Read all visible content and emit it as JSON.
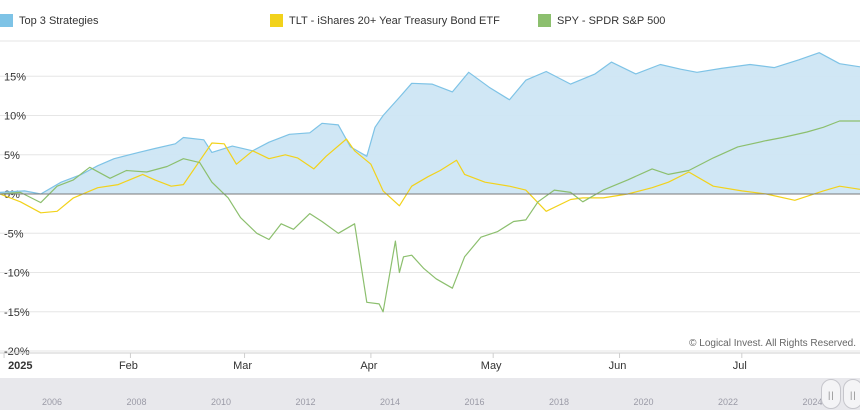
{
  "legend": [
    {
      "label": "Top 3 Strategies",
      "color": "#7ec3e6"
    },
    {
      "label": "TLT - iShares 20+ Year Treasury Bond ETF",
      "color": "#f2d21b"
    },
    {
      "label": "SPY - SPDR S&P 500",
      "color": "#8cbf6e"
    }
  ],
  "credits": "© Logical Invest. All Rights Reserved.",
  "navigator": {
    "years": [
      "2006",
      "2008",
      "2010",
      "2012",
      "2014",
      "2016",
      "2018",
      "2020",
      "2022",
      "2024"
    ],
    "handle_glyph": "||"
  },
  "chart_data": {
    "type": "area",
    "x_axis": {
      "type": "datetime",
      "tick_labels": [
        "2025",
        "Feb",
        "Mar",
        "Apr",
        "May",
        "Jun",
        "Jul"
      ],
      "tick_dates": [
        "2025-01-01",
        "2025-02-01",
        "2025-03-01",
        "2025-04-01",
        "2025-05-01",
        "2025-06-01",
        "2025-07-01"
      ],
      "range": [
        "2024-12-31",
        "2025-07-30"
      ]
    },
    "y_axis": {
      "tick_labels": [
        "15%",
        "10%",
        "5%",
        "0%",
        "-5%",
        "-10%",
        "-15%",
        "-20%"
      ],
      "tick_values": [
        15,
        10,
        5,
        0,
        -5,
        -10,
        -15,
        -20
      ],
      "ylim": [
        -20,
        20
      ],
      "grid": true
    },
    "legend_position": "top",
    "series": [
      {
        "name": "Top 3 Strategies",
        "color": "#7ec3e6",
        "fill": "#cde6f4",
        "render": "area",
        "points": [
          [
            "2024-12-31",
            0.2
          ],
          [
            "2025-01-06",
            0.4
          ],
          [
            "2025-01-10",
            0.0
          ],
          [
            "2025-01-15",
            1.5
          ],
          [
            "2025-01-20",
            2.5
          ],
          [
            "2025-01-24",
            3.6
          ],
          [
            "2025-01-28",
            4.5
          ],
          [
            "2025-02-03",
            5.3
          ],
          [
            "2025-02-07",
            5.8
          ],
          [
            "2025-02-12",
            6.4
          ],
          [
            "2025-02-14",
            7.2
          ],
          [
            "2025-02-19",
            6.9
          ],
          [
            "2025-02-21",
            5.3
          ],
          [
            "2025-02-26",
            6.1
          ],
          [
            "2025-03-03",
            5.5
          ],
          [
            "2025-03-07",
            6.6
          ],
          [
            "2025-03-12",
            7.6
          ],
          [
            "2025-03-17",
            7.8
          ],
          [
            "2025-03-20",
            9.0
          ],
          [
            "2025-03-24",
            8.8
          ],
          [
            "2025-03-27",
            6.0
          ],
          [
            "2025-03-31",
            4.8
          ],
          [
            "2025-04-02",
            8.5
          ],
          [
            "2025-04-04",
            10.0
          ],
          [
            "2025-04-08",
            12.3
          ],
          [
            "2025-04-11",
            14.1
          ],
          [
            "2025-04-16",
            14.0
          ],
          [
            "2025-04-21",
            13.0
          ],
          [
            "2025-04-25",
            15.5
          ],
          [
            "2025-04-30",
            13.6
          ],
          [
            "2025-05-05",
            12.0
          ],
          [
            "2025-05-09",
            14.5
          ],
          [
            "2025-05-14",
            15.6
          ],
          [
            "2025-05-20",
            14.0
          ],
          [
            "2025-05-26",
            15.3
          ],
          [
            "2025-05-30",
            16.8
          ],
          [
            "2025-06-05",
            15.3
          ],
          [
            "2025-06-11",
            16.5
          ],
          [
            "2025-06-16",
            15.9
          ],
          [
            "2025-06-20",
            15.5
          ],
          [
            "2025-06-26",
            16.0
          ],
          [
            "2025-07-03",
            16.5
          ],
          [
            "2025-07-09",
            16.1
          ],
          [
            "2025-07-15",
            17.1
          ],
          [
            "2025-07-20",
            18.0
          ],
          [
            "2025-07-25",
            16.6
          ],
          [
            "2025-07-30",
            16.2
          ]
        ]
      },
      {
        "name": "TLT - iShares 20+ Year Treasury Bond ETF",
        "color": "#f2d21b",
        "render": "line",
        "points": [
          [
            "2024-12-31",
            0.0
          ],
          [
            "2025-01-05",
            -1.0
          ],
          [
            "2025-01-10",
            -2.4
          ],
          [
            "2025-01-14",
            -2.2
          ],
          [
            "2025-01-18",
            -0.5
          ],
          [
            "2025-01-24",
            0.8
          ],
          [
            "2025-01-29",
            1.2
          ],
          [
            "2025-02-04",
            2.5
          ],
          [
            "2025-02-07",
            1.8
          ],
          [
            "2025-02-11",
            1.0
          ],
          [
            "2025-02-14",
            1.2
          ],
          [
            "2025-02-19",
            5.0
          ],
          [
            "2025-02-21",
            6.5
          ],
          [
            "2025-02-24",
            6.4
          ],
          [
            "2025-02-27",
            3.8
          ],
          [
            "2025-03-03",
            5.5
          ],
          [
            "2025-03-07",
            4.5
          ],
          [
            "2025-03-11",
            5.0
          ],
          [
            "2025-03-14",
            4.6
          ],
          [
            "2025-03-18",
            3.2
          ],
          [
            "2025-03-21",
            4.8
          ],
          [
            "2025-03-26",
            7.0
          ],
          [
            "2025-03-28",
            5.5
          ],
          [
            "2025-04-01",
            3.8
          ],
          [
            "2025-04-04",
            0.4
          ],
          [
            "2025-04-08",
            -1.5
          ],
          [
            "2025-04-11",
            1.0
          ],
          [
            "2025-04-15",
            2.2
          ],
          [
            "2025-04-18",
            3.0
          ],
          [
            "2025-04-22",
            4.3
          ],
          [
            "2025-04-24",
            2.5
          ],
          [
            "2025-04-29",
            1.5
          ],
          [
            "2025-05-05",
            1.0
          ],
          [
            "2025-05-09",
            0.5
          ],
          [
            "2025-05-14",
            -2.2
          ],
          [
            "2025-05-20",
            -0.7
          ],
          [
            "2025-05-23",
            -0.5
          ],
          [
            "2025-05-28",
            -0.5
          ],
          [
            "2025-06-03",
            0.0
          ],
          [
            "2025-06-09",
            0.8
          ],
          [
            "2025-06-13",
            1.5
          ],
          [
            "2025-06-18",
            2.8
          ],
          [
            "2025-06-24",
            1.0
          ],
          [
            "2025-07-01",
            0.4
          ],
          [
            "2025-07-07",
            0.0
          ],
          [
            "2025-07-14",
            -0.8
          ],
          [
            "2025-07-21",
            0.4
          ],
          [
            "2025-07-25",
            1.0
          ],
          [
            "2025-07-30",
            0.6
          ]
        ]
      },
      {
        "name": "SPY - SPDR S&P 500",
        "color": "#8cbf6e",
        "render": "line",
        "points": [
          [
            "2024-12-31",
            0.0
          ],
          [
            "2025-01-05",
            0.2
          ],
          [
            "2025-01-10",
            -1.1
          ],
          [
            "2025-01-14",
            1.0
          ],
          [
            "2025-01-18",
            1.8
          ],
          [
            "2025-01-22",
            3.4
          ],
          [
            "2025-01-27",
            2.0
          ],
          [
            "2025-01-31",
            3.0
          ],
          [
            "2025-02-05",
            2.8
          ],
          [
            "2025-02-10",
            3.5
          ],
          [
            "2025-02-14",
            4.5
          ],
          [
            "2025-02-18",
            4.0
          ],
          [
            "2025-02-21",
            1.5
          ],
          [
            "2025-02-25",
            -0.5
          ],
          [
            "2025-02-28",
            -3.0
          ],
          [
            "2025-03-04",
            -5.0
          ],
          [
            "2025-03-07",
            -5.8
          ],
          [
            "2025-03-10",
            -3.8
          ],
          [
            "2025-03-13",
            -4.5
          ],
          [
            "2025-03-17",
            -2.5
          ],
          [
            "2025-03-20",
            -3.5
          ],
          [
            "2025-03-24",
            -5.0
          ],
          [
            "2025-03-28",
            -3.8
          ],
          [
            "2025-03-31",
            -13.8
          ],
          [
            "2025-04-03",
            -14.0
          ],
          [
            "2025-04-04",
            -15.0
          ],
          [
            "2025-04-07",
            -6.0
          ],
          [
            "2025-04-08",
            -10.0
          ],
          [
            "2025-04-09",
            -8.0
          ],
          [
            "2025-04-11",
            -7.8
          ],
          [
            "2025-04-14",
            -9.5
          ],
          [
            "2025-04-17",
            -10.8
          ],
          [
            "2025-04-21",
            -12.0
          ],
          [
            "2025-04-24",
            -8.0
          ],
          [
            "2025-04-28",
            -5.5
          ],
          [
            "2025-05-02",
            -4.8
          ],
          [
            "2025-05-06",
            -3.5
          ],
          [
            "2025-05-09",
            -3.3
          ],
          [
            "2025-05-12",
            -1.0
          ],
          [
            "2025-05-16",
            0.5
          ],
          [
            "2025-05-20",
            0.2
          ],
          [
            "2025-05-23",
            -1.0
          ],
          [
            "2025-05-28",
            0.5
          ],
          [
            "2025-06-03",
            1.8
          ],
          [
            "2025-06-09",
            3.2
          ],
          [
            "2025-06-13",
            2.5
          ],
          [
            "2025-06-18",
            3.0
          ],
          [
            "2025-06-24",
            4.6
          ],
          [
            "2025-06-30",
            6.0
          ],
          [
            "2025-07-07",
            6.8
          ],
          [
            "2025-07-11",
            7.2
          ],
          [
            "2025-07-17",
            7.9
          ],
          [
            "2025-07-21",
            8.5
          ],
          [
            "2025-07-25",
            9.3
          ],
          [
            "2025-07-30",
            9.3
          ]
        ]
      }
    ]
  }
}
